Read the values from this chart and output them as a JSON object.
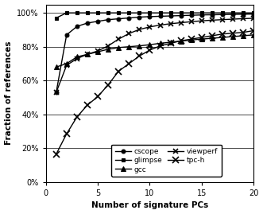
{
  "title": "",
  "xlabel": "Number of signature PCs",
  "ylabel": "Fraction of references",
  "xlim": [
    0,
    20
  ],
  "ylim": [
    0,
    1.05
  ],
  "yticks": [
    0.0,
    0.2,
    0.4,
    0.6,
    0.8,
    1.0
  ],
  "xticks": [
    0,
    5,
    10,
    15,
    20
  ],
  "series": {
    "cscope": {
      "x": [
        1,
        2,
        3,
        4,
        5,
        6,
        7,
        8,
        9,
        10,
        11,
        12,
        13,
        14,
        15,
        16,
        17,
        18,
        19,
        20
      ],
      "y": [
        0.53,
        0.87,
        0.92,
        0.94,
        0.95,
        0.96,
        0.965,
        0.97,
        0.975,
        0.978,
        0.98,
        0.982,
        0.984,
        0.986,
        0.988,
        0.989,
        0.99,
        0.991,
        0.992,
        0.993
      ],
      "marker": "o",
      "markersize": 3.5,
      "color": "#000000",
      "linewidth": 1.0
    },
    "glimpse": {
      "x": [
        1,
        2,
        3,
        4,
        5,
        6,
        7,
        8,
        9,
        10,
        11,
        12,
        13,
        14,
        15,
        16,
        17,
        18,
        19,
        20
      ],
      "y": [
        0.97,
        1.0,
        1.0,
        1.0,
        1.0,
        1.0,
        1.0,
        1.0,
        1.0,
        1.0,
        1.0,
        1.0,
        1.0,
        1.0,
        1.0,
        1.0,
        1.0,
        1.0,
        1.0,
        1.0
      ],
      "marker": "s",
      "markersize": 3.5,
      "color": "#000000",
      "linewidth": 1.0
    },
    "gcc": {
      "x": [
        1,
        2,
        3,
        4,
        5,
        6,
        7,
        8,
        9,
        10,
        11,
        12,
        13,
        14,
        15,
        16,
        17,
        18,
        19,
        20
      ],
      "y": [
        0.68,
        0.7,
        0.74,
        0.755,
        0.77,
        0.785,
        0.795,
        0.8,
        0.805,
        0.812,
        0.82,
        0.827,
        0.833,
        0.84,
        0.845,
        0.85,
        0.855,
        0.86,
        0.865,
        0.87
      ],
      "marker": "^",
      "markersize": 4,
      "color": "#000000",
      "linewidth": 1.0
    },
    "viewperf": {
      "x": [
        1,
        2,
        3,
        4,
        5,
        6,
        7,
        8,
        9,
        10,
        11,
        12,
        13,
        14,
        15,
        16,
        17,
        18,
        19,
        20
      ],
      "y": [
        0.53,
        0.69,
        0.73,
        0.755,
        0.775,
        0.805,
        0.845,
        0.878,
        0.902,
        0.917,
        0.928,
        0.936,
        0.942,
        0.948,
        0.953,
        0.957,
        0.96,
        0.963,
        0.966,
        0.968
      ],
      "marker": "x",
      "markersize": 4.5,
      "color": "#000000",
      "linewidth": 1.0
    },
    "tpc-h": {
      "x": [
        1,
        2,
        3,
        4,
        5,
        6,
        7,
        8,
        9,
        10,
        11,
        12,
        13,
        14,
        15,
        16,
        17,
        18,
        19,
        20
      ],
      "y": [
        0.165,
        0.285,
        0.385,
        0.455,
        0.505,
        0.575,
        0.655,
        0.7,
        0.745,
        0.78,
        0.805,
        0.82,
        0.835,
        0.845,
        0.855,
        0.865,
        0.875,
        0.88,
        0.885,
        0.895
      ],
      "marker": "x",
      "markersize": 5.5,
      "color": "#000000",
      "linewidth": 1.0
    }
  },
  "legend_order": [
    "cscope",
    "glimpse",
    "gcc",
    "viewperf",
    "tpc-h"
  ],
  "background_color": "#ffffff"
}
